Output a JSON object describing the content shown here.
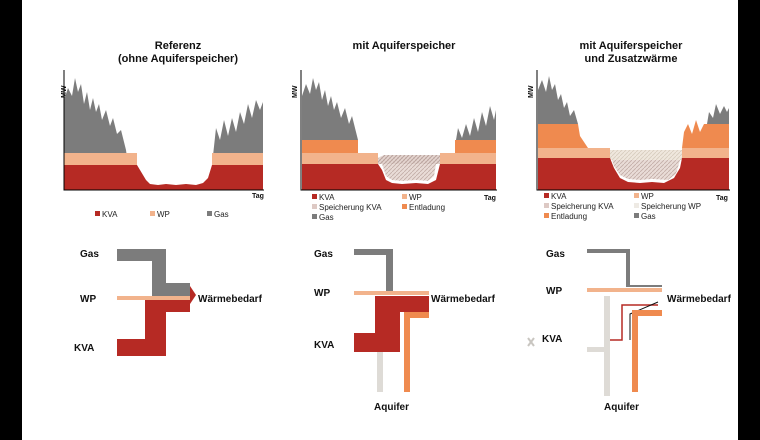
{
  "colors": {
    "kva": "#b62a24",
    "wp": "#f2b38c",
    "gas": "#7c7c7c",
    "speicherung_kva": "#ddc9c4",
    "speicherung_wp": "#eeeae4",
    "entladung": "#ef8a4f",
    "aquifer_light": "#dedbd6",
    "frame_border": "#000000",
    "background": "#ffffff"
  },
  "panels": [
    {
      "title_line1": "Referenz",
      "title_line2": "(ohne Aquiferspeicher)",
      "ylabel": "MW",
      "xlabel": "Tag",
      "legend": [
        {
          "label": "KVA",
          "color": "kva"
        },
        {
          "label": "WP",
          "color": "wp"
        },
        {
          "label": "Gas",
          "color": "gas"
        }
      ],
      "sankey": {
        "gas": "Gas",
        "wp": "WP",
        "kva": "KVA",
        "demand": "Wärmebedarf"
      }
    },
    {
      "title_line1": "mit Aquiferspeicher",
      "title_line2": "",
      "ylabel": "MW",
      "xlabel": "Tag",
      "legend": [
        {
          "label": "KVA",
          "color": "kva"
        },
        {
          "label": "WP",
          "color": "wp"
        },
        {
          "label": "Speicherung KVA",
          "color": "speicherung_kva"
        },
        {
          "label": "Entladung",
          "color": "entladung"
        },
        {
          "label": "Gas",
          "color": "gas"
        }
      ],
      "sankey": {
        "gas": "Gas",
        "wp": "WP",
        "kva": "KVA",
        "demand": "Wärmebedarf",
        "aquifer": "Aquifer"
      }
    },
    {
      "title_line1": "mit Aquiferspeicher",
      "title_line2": "und Zusatzwärme",
      "ylabel": "MW",
      "xlabel": "Tag",
      "legend": [
        {
          "label": "KVA",
          "color": "kva"
        },
        {
          "label": "WP",
          "color": "wp"
        },
        {
          "label": "Speicherung KVA",
          "color": "speicherung_kva"
        },
        {
          "label": "Speicherung WP",
          "color": "speicherung_wp"
        },
        {
          "label": "Entladung",
          "color": "entladung"
        },
        {
          "label": "Gas",
          "color": "gas"
        }
      ],
      "sankey": {
        "gas": "Gas",
        "wp": "WP",
        "kva": "KVA",
        "demand": "Wärmebedarf",
        "aquifer": "Aquifer"
      }
    }
  ]
}
